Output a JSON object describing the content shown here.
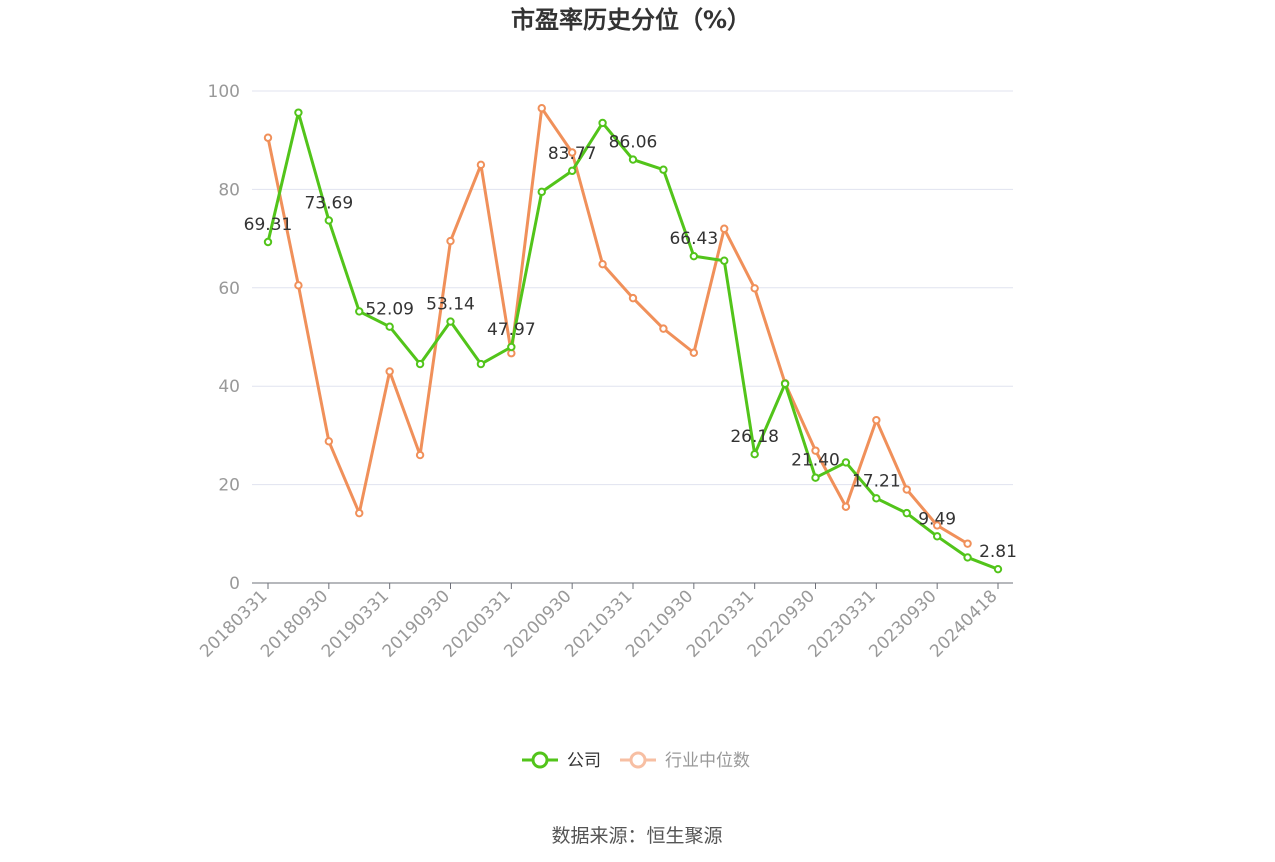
{
  "chart_data": {
    "type": "line",
    "title": "市盈率历史分位（%）",
    "source": "数据来源：恒生聚源",
    "ylim": [
      0,
      100
    ],
    "yticks": [
      0,
      20,
      40,
      60,
      80,
      100
    ],
    "grid": true,
    "legend_position": "bottom-center",
    "x": [
      "20180331",
      "20180630",
      "20180930",
      "20181231",
      "20190331",
      "20190630",
      "20190930",
      "20191231",
      "20200331",
      "20200630",
      "20200930",
      "20201231",
      "20210331",
      "20210630",
      "20210930",
      "20211231",
      "20220331",
      "20220630",
      "20220930",
      "20221231",
      "20230331",
      "20230630",
      "20230930",
      "20231231",
      "20240418"
    ],
    "xtick_labels": [
      "20180331",
      "20180930",
      "20190331",
      "20190930",
      "20200331",
      "20200930",
      "20210331",
      "20210930",
      "20220331",
      "20220930",
      "20230331",
      "20230930",
      "20240418"
    ],
    "series": [
      {
        "name": "公司",
        "color": "#52c41a",
        "values": [
          69.31,
          95.6,
          73.69,
          55.2,
          52.09,
          44.5,
          53.14,
          44.5,
          47.97,
          79.5,
          83.77,
          93.5,
          86.06,
          84.0,
          66.43,
          65.5,
          26.18,
          40.5,
          21.4,
          24.5,
          17.21,
          14.2,
          9.49,
          5.2,
          2.81
        ],
        "data_labels": [
          {
            "index": 0,
            "text": "69.31"
          },
          {
            "index": 2,
            "text": "73.69"
          },
          {
            "index": 4,
            "text": "52.09"
          },
          {
            "index": 6,
            "text": "53.14"
          },
          {
            "index": 8,
            "text": "47.97"
          },
          {
            "index": 10,
            "text": "83.77"
          },
          {
            "index": 12,
            "text": "86.06"
          },
          {
            "index": 14,
            "text": "66.43"
          },
          {
            "index": 16,
            "text": "26.18"
          },
          {
            "index": 18,
            "text": "21.40"
          },
          {
            "index": 20,
            "text": "17.21"
          },
          {
            "index": 22,
            "text": "9.49"
          },
          {
            "index": 24,
            "text": "2.81"
          }
        ]
      },
      {
        "name": "行业中位数",
        "color": "#f0905a",
        "legend_color": "#f7bfa3",
        "values": [
          90.5,
          60.5,
          28.8,
          14.2,
          43.0,
          26.0,
          69.5,
          85.0,
          46.7,
          96.5,
          87.5,
          64.8,
          57.9,
          51.7,
          46.8,
          72.0,
          59.9,
          40.6,
          26.9,
          15.5,
          33.1,
          19.0,
          11.7,
          8.0,
          null
        ]
      }
    ]
  }
}
